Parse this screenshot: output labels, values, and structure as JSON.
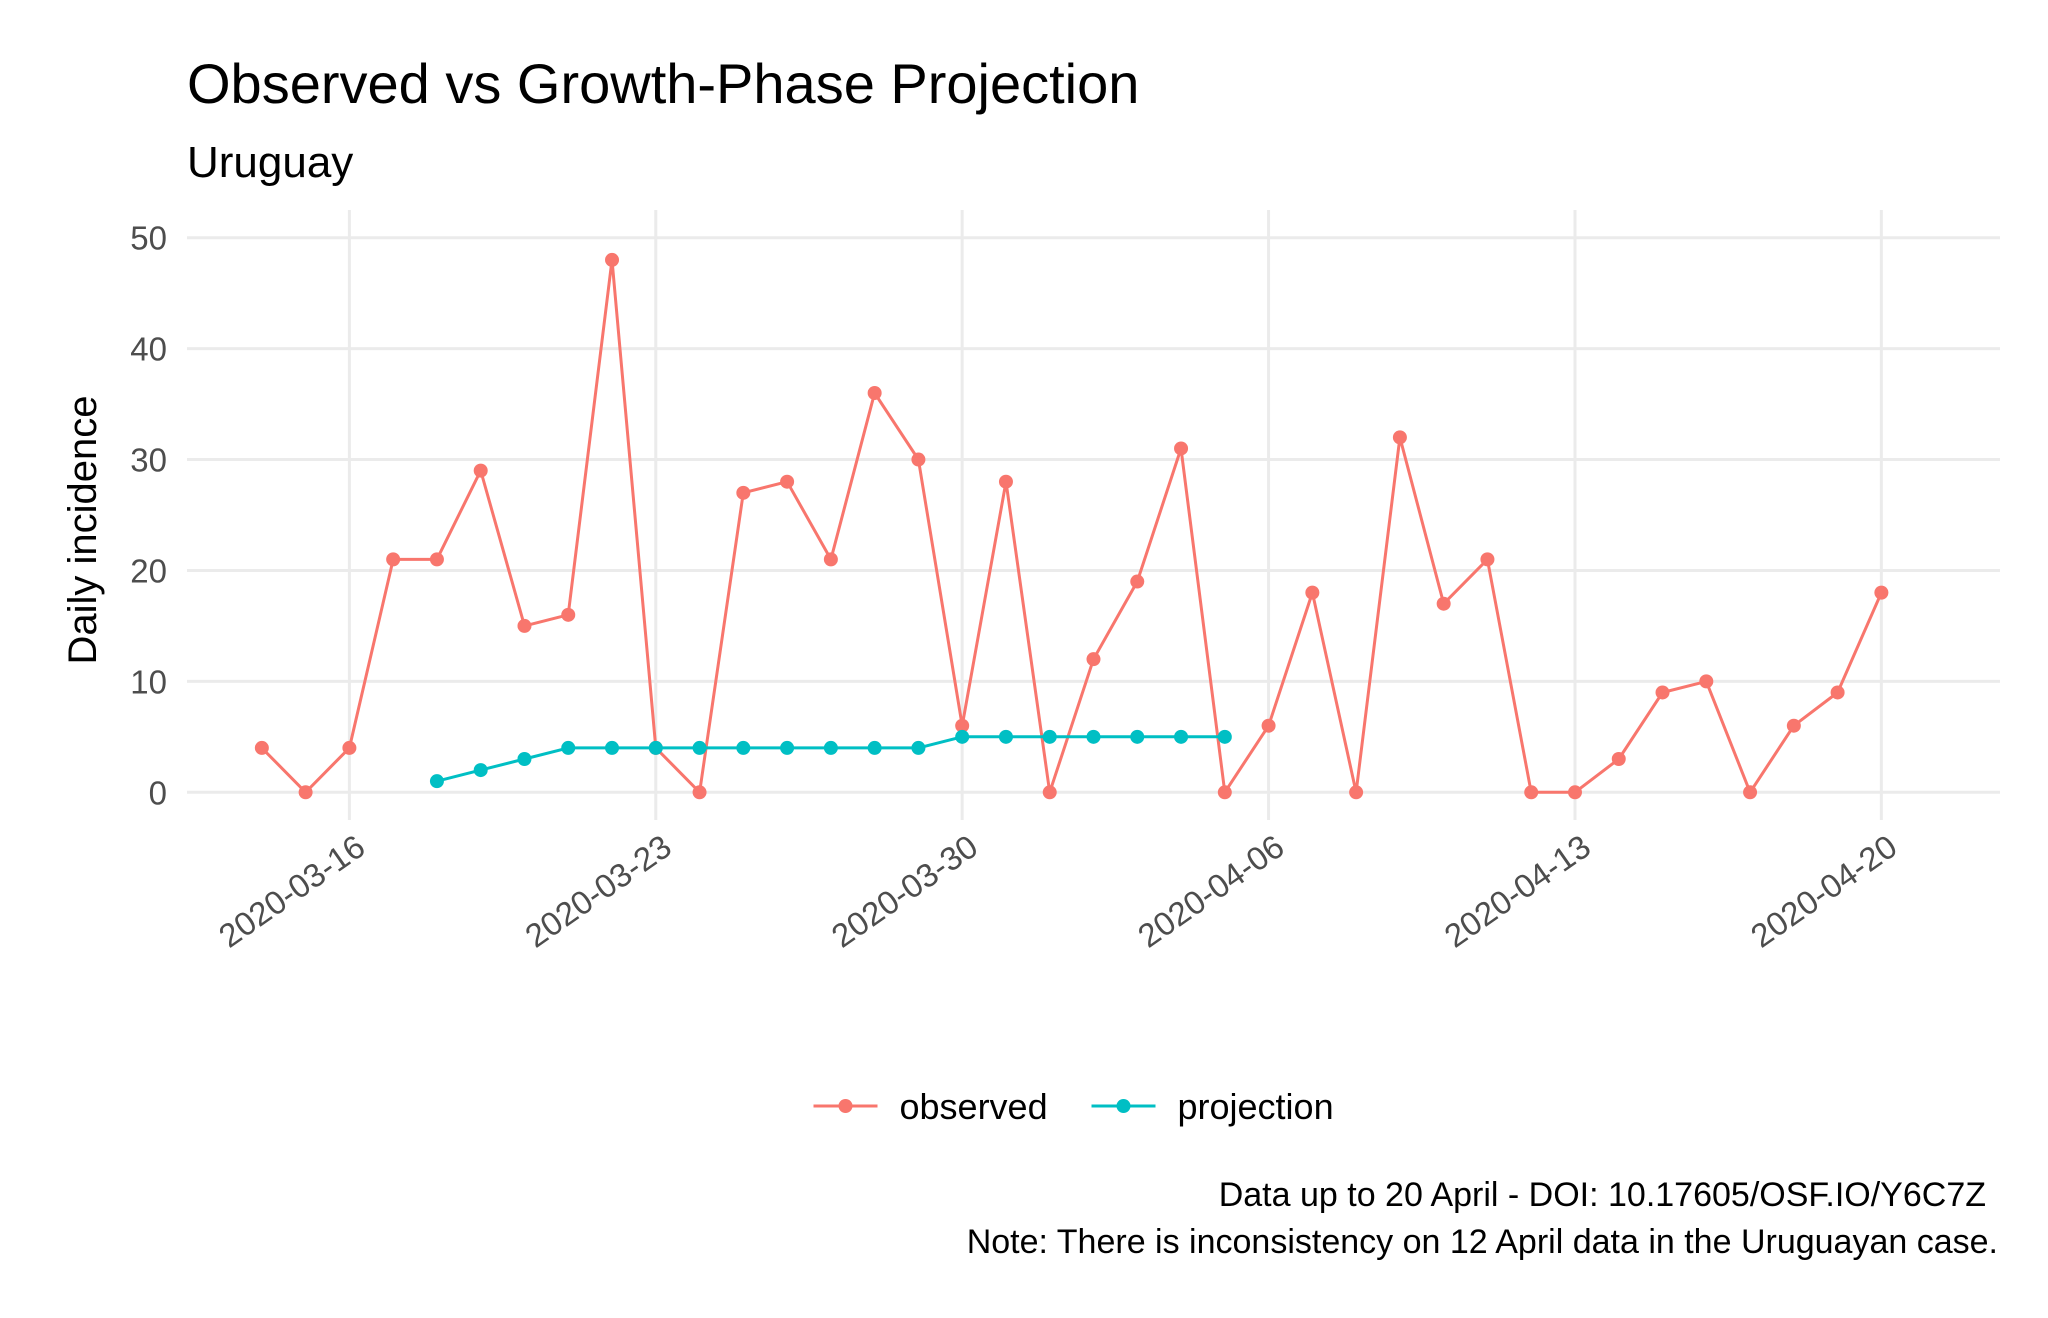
{
  "chart_data": {
    "type": "line",
    "title": "Observed vs Growth-Phase Projection",
    "subtitle": "Uruguay",
    "xlabel": "",
    "ylabel": "Daily incidence",
    "ylim": [
      0,
      50
    ],
    "xlim": [
      "2020-03-14",
      "2020-04-21"
    ],
    "yticks": [
      0,
      10,
      20,
      30,
      40,
      50
    ],
    "xticks": [
      "2020-03-16",
      "2020-03-23",
      "2020-03-30",
      "2020-04-06",
      "2020-04-13",
      "2020-04-20"
    ],
    "grid": true,
    "legend_position": "bottom",
    "series": [
      {
        "name": "observed",
        "color": "#F8766D",
        "points": [
          {
            "x": "2020-03-14",
            "y": 4
          },
          {
            "x": "2020-03-15",
            "y": 0
          },
          {
            "x": "2020-03-16",
            "y": 4
          },
          {
            "x": "2020-03-17",
            "y": 21
          },
          {
            "x": "2020-03-18",
            "y": 21
          },
          {
            "x": "2020-03-19",
            "y": 29
          },
          {
            "x": "2020-03-20",
            "y": 15
          },
          {
            "x": "2020-03-21",
            "y": 16
          },
          {
            "x": "2020-03-22",
            "y": 48
          },
          {
            "x": "2020-03-23",
            "y": 4
          },
          {
            "x": "2020-03-24",
            "y": 0
          },
          {
            "x": "2020-03-25",
            "y": 27
          },
          {
            "x": "2020-03-26",
            "y": 28
          },
          {
            "x": "2020-03-27",
            "y": 21
          },
          {
            "x": "2020-03-28",
            "y": 36
          },
          {
            "x": "2020-03-29",
            "y": 30
          },
          {
            "x": "2020-03-30",
            "y": 6
          },
          {
            "x": "2020-03-31",
            "y": 28
          },
          {
            "x": "2020-04-01",
            "y": 0
          },
          {
            "x": "2020-04-02",
            "y": 12
          },
          {
            "x": "2020-04-03",
            "y": 19
          },
          {
            "x": "2020-04-04",
            "y": 31
          },
          {
            "x": "2020-04-05",
            "y": 0
          },
          {
            "x": "2020-04-06",
            "y": 6
          },
          {
            "x": "2020-04-07",
            "y": 18
          },
          {
            "x": "2020-04-08",
            "y": 0
          },
          {
            "x": "2020-04-09",
            "y": 32
          },
          {
            "x": "2020-04-10",
            "y": 17
          },
          {
            "x": "2020-04-11",
            "y": 21
          },
          {
            "x": "2020-04-12",
            "y": 0
          },
          {
            "x": "2020-04-13",
            "y": 0
          },
          {
            "x": "2020-04-14",
            "y": 3
          },
          {
            "x": "2020-04-15",
            "y": 9
          },
          {
            "x": "2020-04-16",
            "y": 10
          },
          {
            "x": "2020-04-17",
            "y": 0
          },
          {
            "x": "2020-04-18",
            "y": 6
          },
          {
            "x": "2020-04-19",
            "y": 9
          },
          {
            "x": "2020-04-20",
            "y": 18
          }
        ]
      },
      {
        "name": "projection",
        "color": "#00BFC4",
        "points": [
          {
            "x": "2020-03-18",
            "y": 1
          },
          {
            "x": "2020-03-19",
            "y": 2
          },
          {
            "x": "2020-03-20",
            "y": 3
          },
          {
            "x": "2020-03-21",
            "y": 4
          },
          {
            "x": "2020-03-22",
            "y": 4
          },
          {
            "x": "2020-03-23",
            "y": 4
          },
          {
            "x": "2020-03-24",
            "y": 4
          },
          {
            "x": "2020-03-25",
            "y": 4
          },
          {
            "x": "2020-03-26",
            "y": 4
          },
          {
            "x": "2020-03-27",
            "y": 4
          },
          {
            "x": "2020-03-28",
            "y": 4
          },
          {
            "x": "2020-03-29",
            "y": 4
          },
          {
            "x": "2020-03-30",
            "y": 5
          },
          {
            "x": "2020-03-31",
            "y": 5
          },
          {
            "x": "2020-04-01",
            "y": 5
          },
          {
            "x": "2020-04-02",
            "y": 5
          },
          {
            "x": "2020-04-03",
            "y": 5
          },
          {
            "x": "2020-04-04",
            "y": 5
          },
          {
            "x": "2020-04-05",
            "y": 5
          }
        ]
      }
    ],
    "caption": [
      "Data up to 20 April - DOI: 10.17605/OSF.IO/Y6C7Z",
      "Note: There is inconsistency on 12 April data in the Uruguayan case."
    ]
  }
}
